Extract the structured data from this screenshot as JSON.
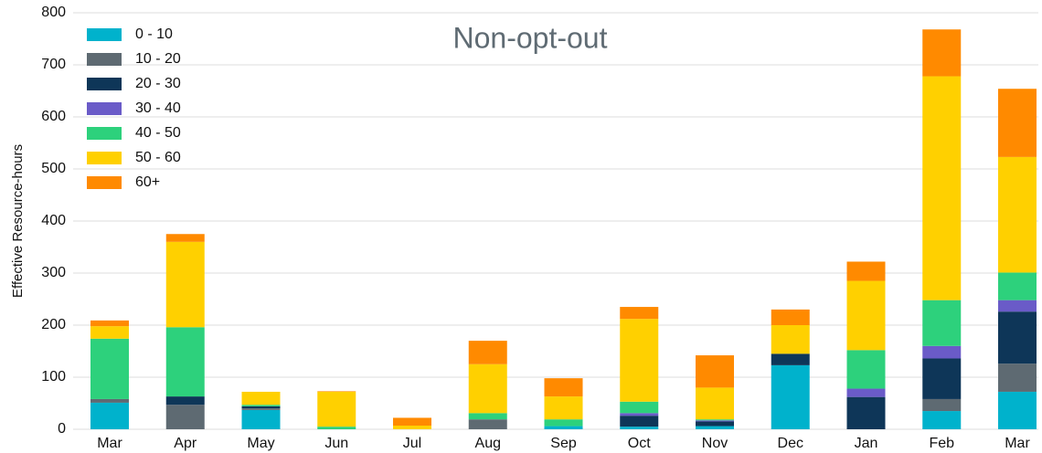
{
  "chart_data": {
    "type": "stacked-bar",
    "title": "Non-opt-out",
    "y_label": "Effective Resource-hours",
    "categories": [
      "Mar",
      "Apr",
      "May",
      "Jun",
      "Jul",
      "Aug",
      "Sep",
      "Oct",
      "Nov",
      "Dec",
      "Jan",
      "Feb",
      "Mar"
    ],
    "series": [
      {
        "name": "0 - 10",
        "color": "#00b2cc",
        "values": [
          51,
          0,
          37,
          0,
          0,
          0,
          6,
          5,
          6,
          123,
          0,
          35,
          72
        ]
      },
      {
        "name": "10 - 20",
        "color": "#5e6a72",
        "values": [
          7,
          47,
          3,
          0,
          0,
          19,
          0,
          0,
          0,
          0,
          0,
          23,
          54
        ]
      },
      {
        "name": "20 - 30",
        "color": "#0e3658",
        "values": [
          0,
          16,
          4,
          0,
          0,
          0,
          0,
          21,
          9,
          22,
          62,
          78,
          100
        ]
      },
      {
        "name": "30 - 40",
        "color": "#6a5bc8",
        "values": [
          0,
          0,
          0,
          0,
          0,
          0,
          0,
          5,
          2,
          0,
          16,
          24,
          22
        ]
      },
      {
        "name": "40 - 50",
        "color": "#2dd17c",
        "values": [
          116,
          133,
          3,
          5,
          0,
          12,
          13,
          22,
          2,
          0,
          74,
          88,
          53
        ]
      },
      {
        "name": "50 - 60",
        "color": "#ffd000",
        "values": [
          24,
          164,
          25,
          67,
          7,
          94,
          44,
          159,
          61,
          55,
          133,
          430,
          222
        ]
      },
      {
        "name": "60+",
        "color": "#ff8a00",
        "values": [
          11,
          15,
          0,
          1,
          15,
          45,
          35,
          23,
          62,
          30,
          37,
          90,
          131
        ]
      }
    ],
    "ylim": [
      0,
      800
    ],
    "yticks": [
      0,
      100,
      200,
      300,
      400,
      500,
      600,
      700,
      800
    ],
    "grid": true,
    "legend": "top-left"
  }
}
